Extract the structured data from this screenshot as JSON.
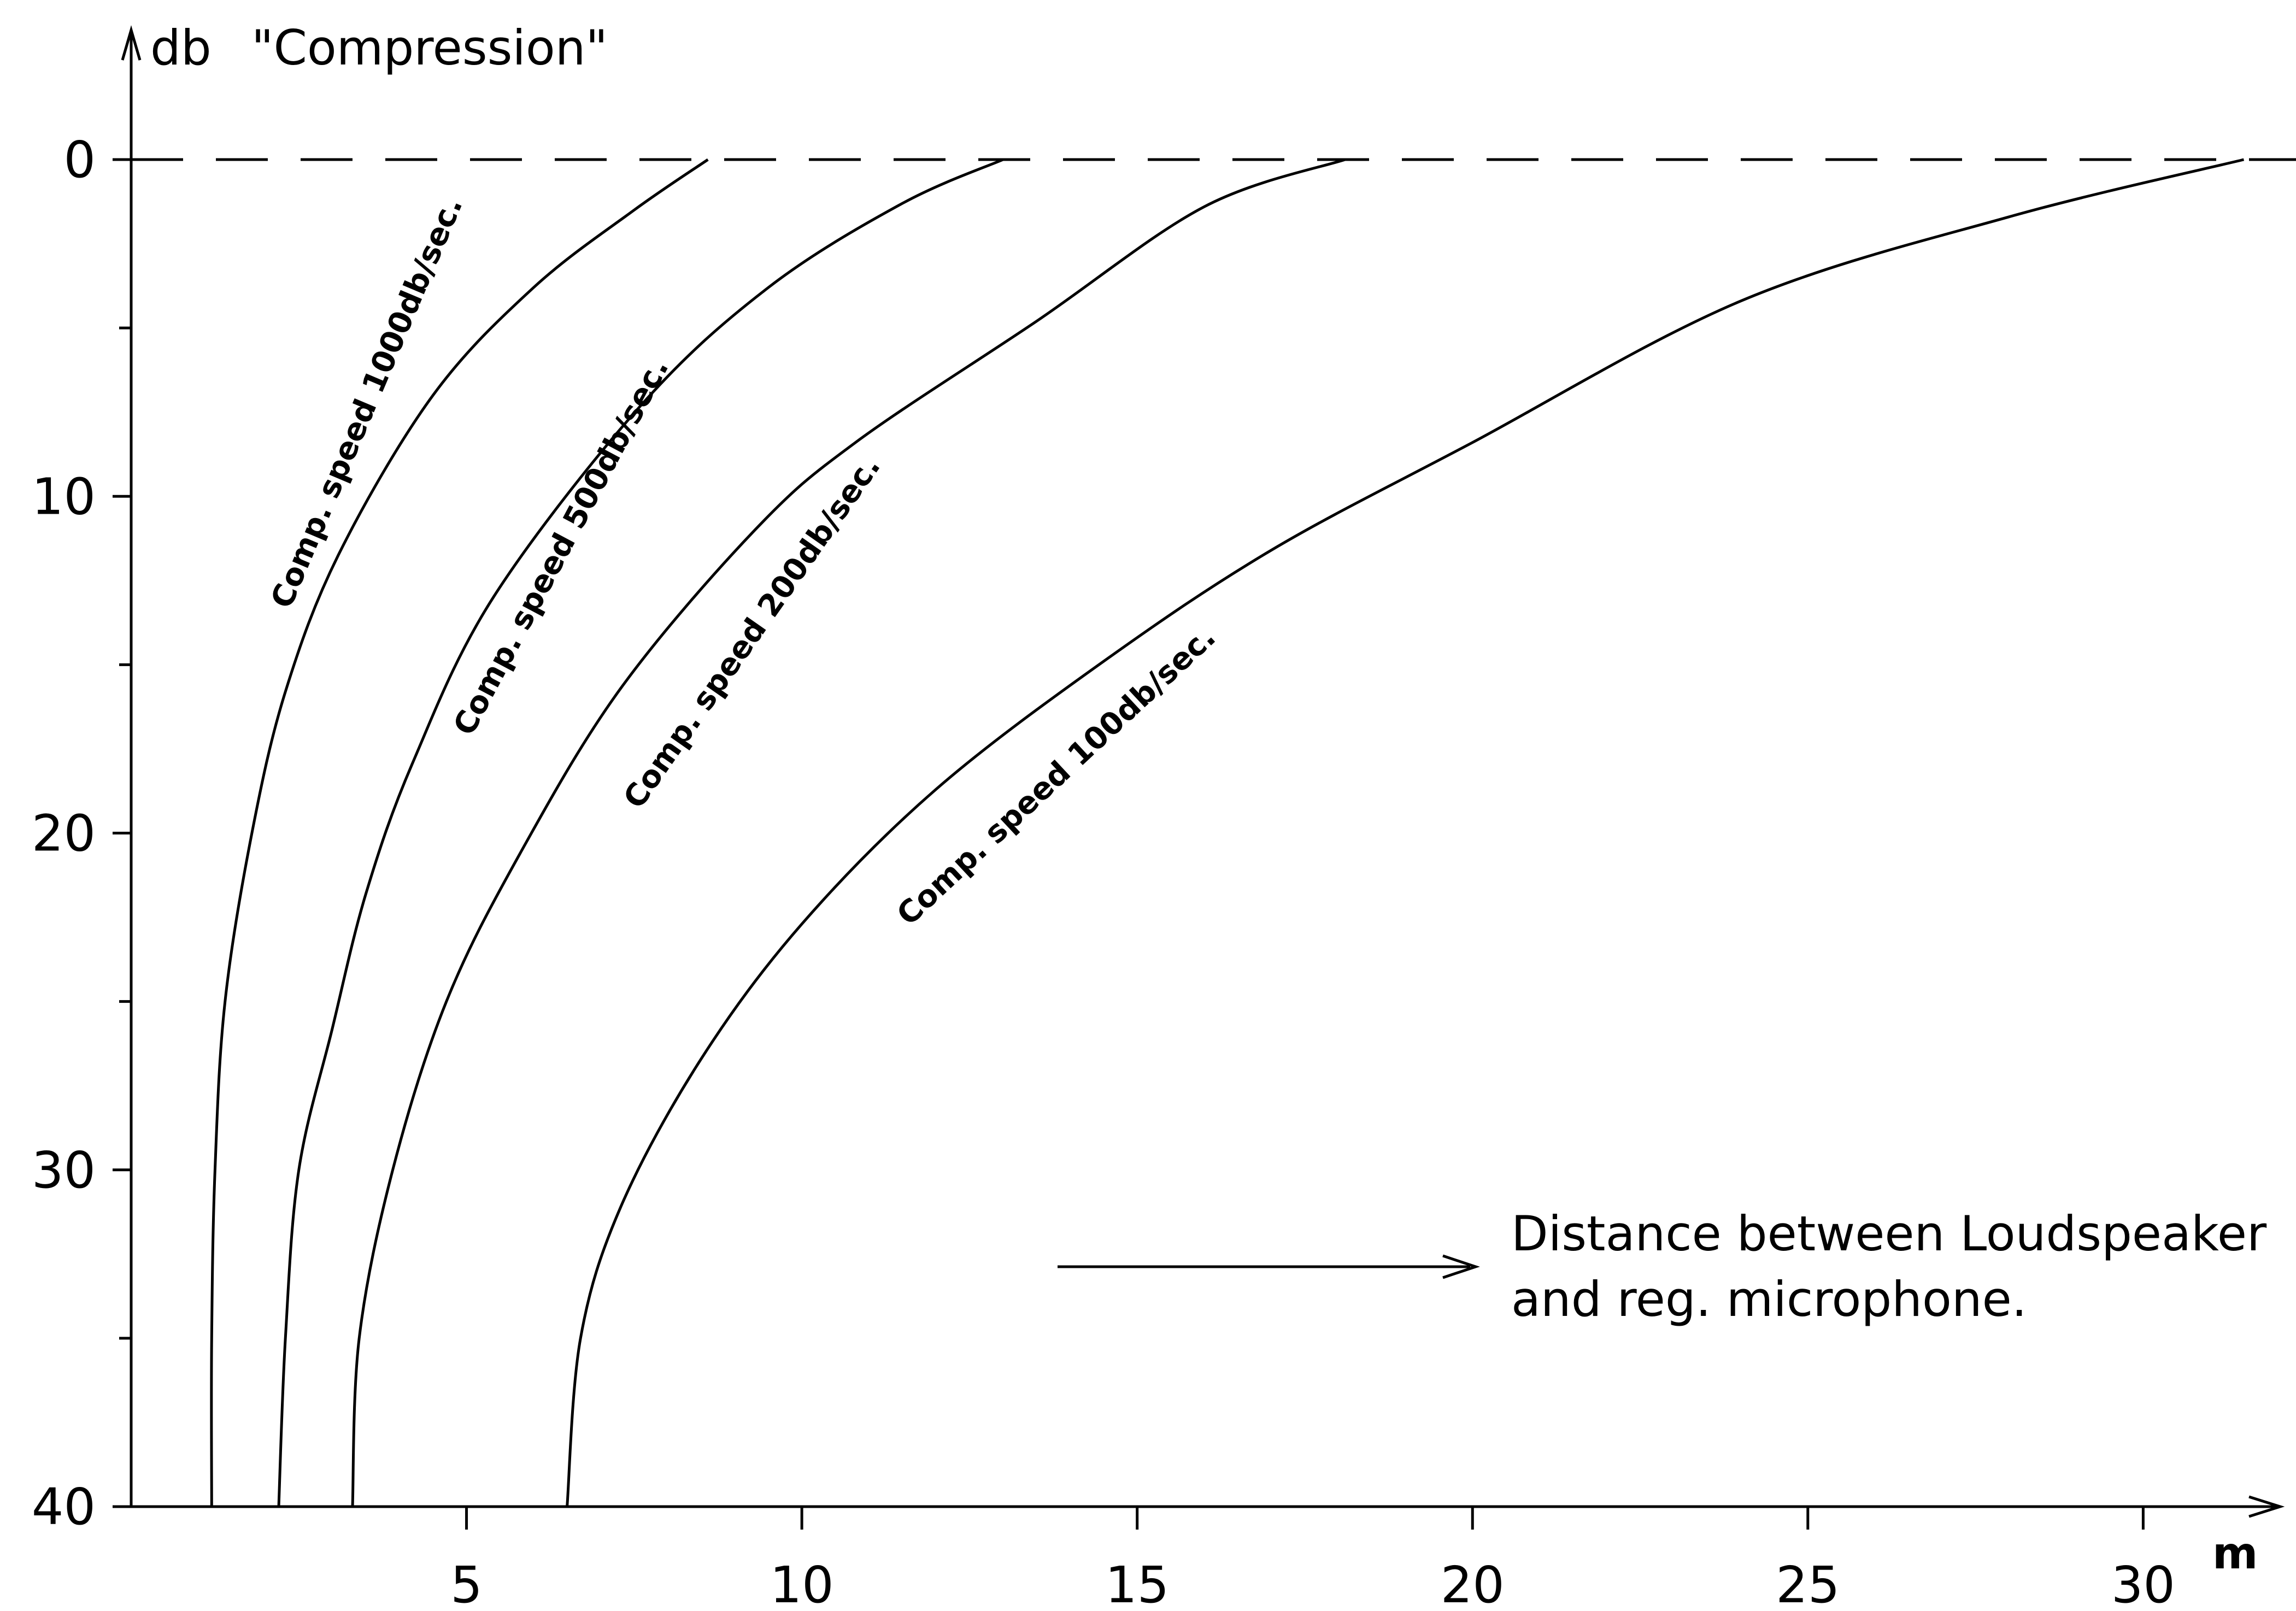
{
  "chart_data": {
    "type": "line",
    "title": "\"Compression\"",
    "ylabel": "db",
    "xlabel": "m",
    "xlim": [
      0,
      32
    ],
    "ylim": [
      0,
      40
    ],
    "y_inverted": true,
    "x_ticks": [
      5,
      10,
      15,
      20,
      25,
      30
    ],
    "y_ticks": [
      0,
      10,
      20,
      30,
      40
    ],
    "reference_line": {
      "y": 0,
      "style": "dashed"
    },
    "annotation": {
      "lines": [
        "Distance between Loudspeaker",
        "and reg. microphone."
      ],
      "arrow": "right"
    },
    "series": [
      {
        "name": "Comp. speed 1000db/sec.",
        "x": [
          8.6,
          7.5,
          6.0,
          4.5,
          3.1,
          2.3,
          1.8,
          1.4,
          1.25,
          1.2,
          1.2
        ],
        "y": [
          0,
          1.5,
          3.8,
          7.0,
          11.7,
          15.8,
          20.0,
          25.0,
          30.0,
          35.0,
          40.0
        ]
      },
      {
        "name": "Comp. speed 500db/sec.",
        "x": [
          13.0,
          11.5,
          9.5,
          7.6,
          5.4,
          4.2,
          3.5,
          3.0,
          2.5,
          2.3,
          2.2
        ],
        "y": [
          0,
          1.3,
          3.8,
          7.3,
          13.0,
          17.9,
          21.8,
          25.8,
          30.0,
          35.0,
          40.0
        ]
      },
      {
        "name": "Comp. speed 200db/sec.",
        "x": [
          18.1,
          16.0,
          13.5,
          10.8,
          9.3,
          7.3,
          5.8,
          4.7,
          3.9,
          3.4,
          3.3
        ],
        "y": [
          0,
          1.4,
          4.8,
          8.4,
          11.0,
          15.7,
          20.6,
          25.0,
          30.0,
          35.0,
          40.0
        ]
      },
      {
        "name": "Comp. speed 100db/sec.",
        "x": [
          31.5,
          28.0,
          24.0,
          20.0,
          17.0,
          14.5,
          12.0,
          10.0,
          8.5,
          7.3,
          6.7,
          6.5
        ],
        "y": [
          0,
          1.7,
          4.2,
          8.4,
          11.6,
          14.9,
          18.7,
          22.7,
          26.7,
          31.1,
          35.0,
          40.0
        ]
      }
    ]
  }
}
